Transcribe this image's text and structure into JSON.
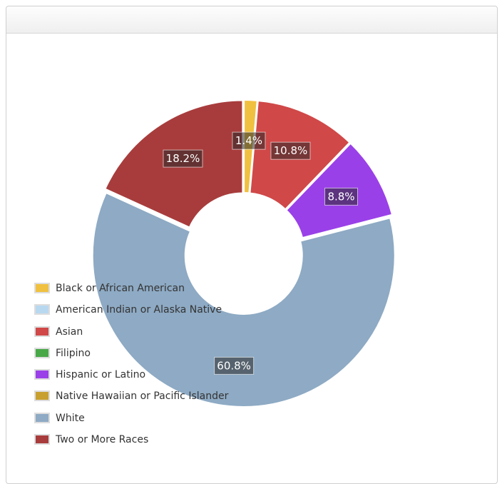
{
  "chart_data": {
    "type": "pie",
    "donut": true,
    "categories": [
      "Black or African American",
      "American Indian or Alaska Native",
      "Asian",
      "Filipino",
      "Hispanic or Latino",
      "Native Hawaiian or Pacific Islander",
      "White",
      "Two or More Races"
    ],
    "values": [
      1.4,
      0.0,
      10.8,
      0.0,
      8.8,
      0.0,
      60.8,
      18.2
    ],
    "labels": [
      "1.4%",
      "",
      "10.8%",
      "",
      "8.8%",
      "",
      "60.8%",
      "18.2%"
    ],
    "colors": [
      "#f0c040",
      "#b8d8f0",
      "#d04848",
      "#48a848",
      "#9a40e8",
      "#c8a030",
      "#8eaac4",
      "#a83c3c"
    ],
    "legend_position": "bottom-left",
    "title": ""
  }
}
